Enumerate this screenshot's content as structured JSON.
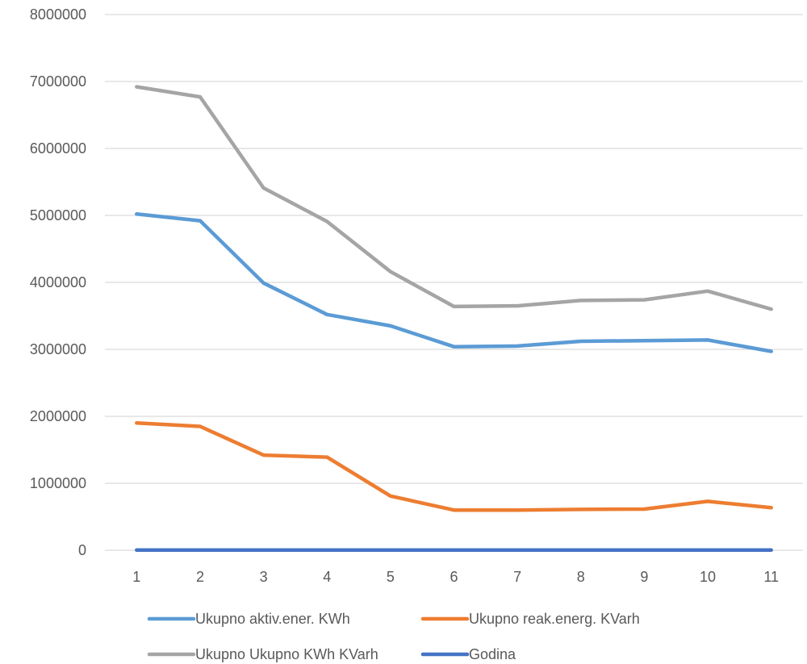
{
  "chart_data": {
    "type": "line",
    "categories": [
      "1",
      "2",
      "3",
      "4",
      "5",
      "6",
      "7",
      "8",
      "9",
      "10",
      "11"
    ],
    "ylim": [
      0,
      8000000
    ],
    "yticks": [
      "0",
      "1000000",
      "2000000",
      "3000000",
      "4000000",
      "5000000",
      "6000000",
      "7000000",
      "8000000"
    ],
    "grid": true,
    "legend_position": "bottom",
    "series": [
      {
        "name": "Ukupno aktiv.ener. KWh",
        "color": "#5B9BD5",
        "values": [
          5020000,
          4920000,
          3990000,
          3520000,
          3350000,
          3040000,
          3050000,
          3120000,
          3130000,
          3140000,
          2970000
        ]
      },
      {
        "name": "Ukupno reak.energ. KVarh",
        "color": "#ED7D31",
        "values": [
          1900000,
          1850000,
          1420000,
          1390000,
          810000,
          600000,
          600000,
          610000,
          615000,
          730000,
          635000
        ]
      },
      {
        "name": "Ukupno Ukupno KWh KVarh",
        "color": "#A5A5A5",
        "values": [
          6920000,
          6770000,
          5410000,
          4910000,
          4160000,
          3640000,
          3650000,
          3730000,
          3740000,
          3870000,
          3600000
        ]
      },
      {
        "name": "Godina",
        "color": "#4472C4",
        "values": [
          2011,
          2012,
          2013,
          2014,
          2015,
          2016,
          2017,
          2018,
          2019,
          2020,
          2021
        ]
      }
    ]
  }
}
